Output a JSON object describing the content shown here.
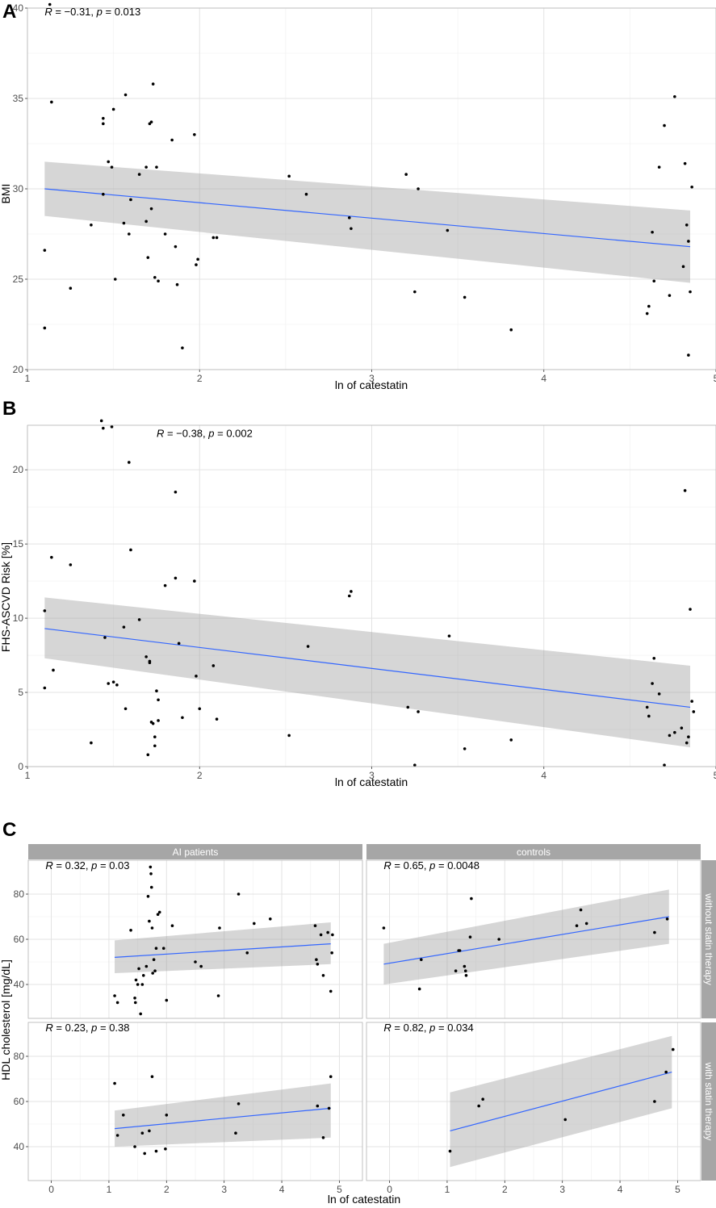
{
  "chart_data": [
    {
      "panel": "A",
      "type": "scatter",
      "xlabel": "ln of catestatin",
      "ylabel": "BMI",
      "xlim": [
        1,
        5
      ],
      "ylim": [
        20,
        40
      ],
      "xticks": [
        1,
        2,
        3,
        4,
        5
      ],
      "yticks": [
        20,
        25,
        30,
        35,
        40
      ],
      "annotation": {
        "r_prefix": "R",
        "r_value": " = −0.31, ",
        "p_prefix": "p",
        "p_value": " = 0.013"
      },
      "fit": {
        "x": [
          1.1,
          4.85
        ],
        "y": [
          30.0,
          26.8
        ],
        "band_lo": [
          28.5,
          24.8
        ],
        "band_hi": [
          31.5,
          28.8
        ]
      },
      "points": [
        [
          1.1,
          26.6
        ],
        [
          1.1,
          22.3
        ],
        [
          1.13,
          40.2
        ],
        [
          1.14,
          34.8
        ],
        [
          1.25,
          24.5
        ],
        [
          1.37,
          28.0
        ],
        [
          1.44,
          33.9
        ],
        [
          1.44,
          33.6
        ],
        [
          1.44,
          29.7
        ],
        [
          1.47,
          31.5
        ],
        [
          1.49,
          31.2
        ],
        [
          1.5,
          34.4
        ],
        [
          1.51,
          25.0
        ],
        [
          1.56,
          28.1
        ],
        [
          1.57,
          35.2
        ],
        [
          1.59,
          27.5
        ],
        [
          1.6,
          29.4
        ],
        [
          1.65,
          30.8
        ],
        [
          1.69,
          31.2
        ],
        [
          1.69,
          28.2
        ],
        [
          1.7,
          26.2
        ],
        [
          1.71,
          33.6
        ],
        [
          1.72,
          33.7
        ],
        [
          1.72,
          28.9
        ],
        [
          1.73,
          35.8
        ],
        [
          1.74,
          25.1
        ],
        [
          1.75,
          31.2
        ],
        [
          1.76,
          24.9
        ],
        [
          1.8,
          27.5
        ],
        [
          1.84,
          32.7
        ],
        [
          1.86,
          26.8
        ],
        [
          1.87,
          24.7
        ],
        [
          1.9,
          21.2
        ],
        [
          1.97,
          33.0
        ],
        [
          1.98,
          25.8
        ],
        [
          1.99,
          26.1
        ],
        [
          2.08,
          27.3
        ],
        [
          2.1,
          27.3
        ],
        [
          2.52,
          30.7
        ],
        [
          2.62,
          29.7
        ],
        [
          2.87,
          28.4
        ],
        [
          2.88,
          27.8
        ],
        [
          3.2,
          30.8
        ],
        [
          3.25,
          24.3
        ],
        [
          3.27,
          30.0
        ],
        [
          3.44,
          27.7
        ],
        [
          3.54,
          24.0
        ],
        [
          3.81,
          22.2
        ],
        [
          4.6,
          23.1
        ],
        [
          4.61,
          23.5
        ],
        [
          4.63,
          27.6
        ],
        [
          4.64,
          24.9
        ],
        [
          4.67,
          31.2
        ],
        [
          4.7,
          33.5
        ],
        [
          4.73,
          24.1
        ],
        [
          4.76,
          35.1
        ],
        [
          4.81,
          25.7
        ],
        [
          4.82,
          31.4
        ],
        [
          4.83,
          28.0
        ],
        [
          4.84,
          27.1
        ],
        [
          4.85,
          24.3
        ],
        [
          4.86,
          30.1
        ],
        [
          4.84,
          20.8
        ]
      ]
    },
    {
      "panel": "B",
      "type": "scatter",
      "xlabel": "ln of catestatin",
      "ylabel": "FHS-ASCVD Risk [%]",
      "xlim": [
        1,
        5
      ],
      "ylim": [
        0,
        23
      ],
      "xticks": [
        1,
        2,
        3,
        4,
        5
      ],
      "yticks": [
        0,
        5,
        10,
        15,
        20
      ],
      "annotation": {
        "r_prefix": "R",
        "r_value": " = −0.38, ",
        "p_prefix": "p",
        "p_value": " = 0.002"
      },
      "fit": {
        "x": [
          1.1,
          4.85
        ],
        "y": [
          9.3,
          4.0
        ],
        "band_lo": [
          7.3,
          1.3
        ],
        "band_hi": [
          11.4,
          6.8
        ]
      },
      "points": [
        [
          1.1,
          10.5
        ],
        [
          1.1,
          5.3
        ],
        [
          1.14,
          14.1
        ],
        [
          1.15,
          6.5
        ],
        [
          1.25,
          13.6
        ],
        [
          1.37,
          1.6
        ],
        [
          1.43,
          23.3
        ],
        [
          1.44,
          22.8
        ],
        [
          1.45,
          8.7
        ],
        [
          1.47,
          5.6
        ],
        [
          1.49,
          22.9
        ],
        [
          1.5,
          5.7
        ],
        [
          1.52,
          5.5
        ],
        [
          1.56,
          9.4
        ],
        [
          1.57,
          3.9
        ],
        [
          1.59,
          20.5
        ],
        [
          1.6,
          14.6
        ],
        [
          1.65,
          9.9
        ],
        [
          1.69,
          7.4
        ],
        [
          1.7,
          0.8
        ],
        [
          1.71,
          7.1
        ],
        [
          1.71,
          7.0
        ],
        [
          1.72,
          3.0
        ],
        [
          1.73,
          2.9
        ],
        [
          1.74,
          2.0
        ],
        [
          1.74,
          1.4
        ],
        [
          1.75,
          5.1
        ],
        [
          1.76,
          4.5
        ],
        [
          1.76,
          3.1
        ],
        [
          1.8,
          12.2
        ],
        [
          1.86,
          18.5
        ],
        [
          1.86,
          12.7
        ],
        [
          1.88,
          8.3
        ],
        [
          1.9,
          3.3
        ],
        [
          1.97,
          12.5
        ],
        [
          1.98,
          6.1
        ],
        [
          2.0,
          3.9
        ],
        [
          2.08,
          6.8
        ],
        [
          2.1,
          3.2
        ],
        [
          2.52,
          2.1
        ],
        [
          2.63,
          8.1
        ],
        [
          2.87,
          11.5
        ],
        [
          2.88,
          11.8
        ],
        [
          3.21,
          4.0
        ],
        [
          3.25,
          0.1
        ],
        [
          3.27,
          3.7
        ],
        [
          3.45,
          8.8
        ],
        [
          3.54,
          1.2
        ],
        [
          3.81,
          1.8
        ],
        [
          4.6,
          4.0
        ],
        [
          4.61,
          3.4
        ],
        [
          4.63,
          5.6
        ],
        [
          4.64,
          7.3
        ],
        [
          4.67,
          4.9
        ],
        [
          4.7,
          0.1
        ],
        [
          4.73,
          2.1
        ],
        [
          4.76,
          2.3
        ],
        [
          4.8,
          2.6
        ],
        [
          4.82,
          18.6
        ],
        [
          4.83,
          1.6
        ],
        [
          4.84,
          2.0
        ],
        [
          4.85,
          10.6
        ],
        [
          4.86,
          4.4
        ],
        [
          4.87,
          3.7
        ]
      ]
    },
    {
      "panel": "C",
      "type": "scatter",
      "xlabel": "ln of catestatin",
      "ylabel": "HDL cholesterol [mg/dL]",
      "xlim": [
        -0.4,
        5.4
      ],
      "ylim": [
        25,
        95
      ],
      "xticks": [
        0,
        1,
        2,
        3,
        4,
        5
      ],
      "yticks": [
        40,
        60,
        80
      ],
      "column_strips": [
        "AI patients",
        "controls"
      ],
      "row_strips": [
        "without statin therapy",
        "with statin therapy"
      ],
      "facets": [
        {
          "col": "AI patients",
          "row": "without statin therapy",
          "annotation": {
            "r_prefix": "R",
            "r_value": " = 0.32, ",
            "p_prefix": "p",
            "p_value": " = 0.03"
          },
          "fit": {
            "x": [
              1.1,
              4.85
            ],
            "y": [
              52.0,
              58.0
            ],
            "band_lo": [
              45.0,
              49.0
            ],
            "band_hi": [
              59.5,
              67.5
            ]
          },
          "points": [
            [
              1.1,
              35
            ],
            [
              1.15,
              32
            ],
            [
              1.38,
              64
            ],
            [
              1.45,
              34
            ],
            [
              1.46,
              32
            ],
            [
              1.47,
              42
            ],
            [
              1.5,
              40
            ],
            [
              1.52,
              47
            ],
            [
              1.55,
              27
            ],
            [
              1.58,
              40
            ],
            [
              1.6,
              44
            ],
            [
              1.65,
              48
            ],
            [
              1.68,
              79
            ],
            [
              1.7,
              68
            ],
            [
              1.72,
              92
            ],
            [
              1.73,
              89
            ],
            [
              1.74,
              83
            ],
            [
              1.75,
              65
            ],
            [
              1.76,
              45
            ],
            [
              1.78,
              51
            ],
            [
              1.8,
              46
            ],
            [
              1.82,
              56
            ],
            [
              1.85,
              71
            ],
            [
              1.88,
              72
            ],
            [
              1.95,
              56
            ],
            [
              2.0,
              33
            ],
            [
              2.1,
              66
            ],
            [
              2.5,
              50
            ],
            [
              2.6,
              48
            ],
            [
              2.9,
              35
            ],
            [
              2.92,
              65
            ],
            [
              3.25,
              80
            ],
            [
              3.4,
              54
            ],
            [
              3.52,
              67
            ],
            [
              3.8,
              69
            ],
            [
              4.58,
              66
            ],
            [
              4.6,
              51
            ],
            [
              4.62,
              49
            ],
            [
              4.68,
              62
            ],
            [
              4.72,
              44
            ],
            [
              4.8,
              63
            ],
            [
              4.85,
              37
            ],
            [
              4.87,
              54
            ],
            [
              4.88,
              62
            ]
          ]
        },
        {
          "col": "controls",
          "row": "without statin therapy",
          "annotation": {
            "r_prefix": "R",
            "r_value": " = 0.65, ",
            "p_prefix": "p",
            "p_value": " = 0.0048"
          },
          "fit": {
            "x": [
              -0.1,
              4.85
            ],
            "y": [
              49.0,
              70.0
            ],
            "band_lo": [
              40.0,
              58.0
            ],
            "band_hi": [
              58.0,
              82.0
            ]
          },
          "points": [
            [
              -0.1,
              65
            ],
            [
              0.52,
              38
            ],
            [
              0.55,
              51
            ],
            [
              1.15,
              46
            ],
            [
              1.2,
              55
            ],
            [
              1.22,
              55
            ],
            [
              1.3,
              48
            ],
            [
              1.32,
              46
            ],
            [
              1.33,
              44
            ],
            [
              1.4,
              61
            ],
            [
              1.42,
              78
            ],
            [
              1.9,
              60
            ],
            [
              3.25,
              66
            ],
            [
              3.32,
              73
            ],
            [
              3.42,
              67
            ],
            [
              4.6,
              63
            ],
            [
              4.82,
              69
            ]
          ]
        },
        {
          "col": "AI patients",
          "row": "with statin therapy",
          "annotation": {
            "r_prefix": "R",
            "r_value": " = 0.23, ",
            "p_prefix": "p",
            "p_value": " = 0.38"
          },
          "fit": {
            "x": [
              1.1,
              4.85
            ],
            "y": [
              48.0,
              57.0
            ],
            "band_lo": [
              40.0,
              44.0
            ],
            "band_hi": [
              56.0,
              68.0
            ]
          },
          "points": [
            [
              1.1,
              68
            ],
            [
              1.15,
              45
            ],
            [
              1.25,
              54
            ],
            [
              1.45,
              40
            ],
            [
              1.58,
              46
            ],
            [
              1.62,
              37
            ],
            [
              1.7,
              47
            ],
            [
              1.75,
              71
            ],
            [
              1.82,
              38
            ],
            [
              1.98,
              39
            ],
            [
              2.0,
              54
            ],
            [
              3.2,
              46
            ],
            [
              3.25,
              59
            ],
            [
              4.62,
              58
            ],
            [
              4.72,
              44
            ],
            [
              4.82,
              57
            ],
            [
              4.85,
              71
            ]
          ]
        },
        {
          "col": "controls",
          "row": "with statin therapy",
          "annotation": {
            "r_prefix": "R",
            "r_value": " = 0.82, ",
            "p_prefix": "p",
            "p_value": " = 0.034"
          },
          "fit": {
            "x": [
              1.05,
              4.9
            ],
            "y": [
              47.0,
              73.0
            ],
            "band_lo": [
              31.0,
              57.0
            ],
            "band_hi": [
              64.0,
              89.0
            ]
          },
          "points": [
            [
              1.05,
              38
            ],
            [
              1.55,
              58
            ],
            [
              1.62,
              61
            ],
            [
              3.05,
              52
            ],
            [
              4.6,
              60
            ],
            [
              4.8,
              73
            ],
            [
              4.92,
              83
            ]
          ]
        }
      ]
    }
  ]
}
